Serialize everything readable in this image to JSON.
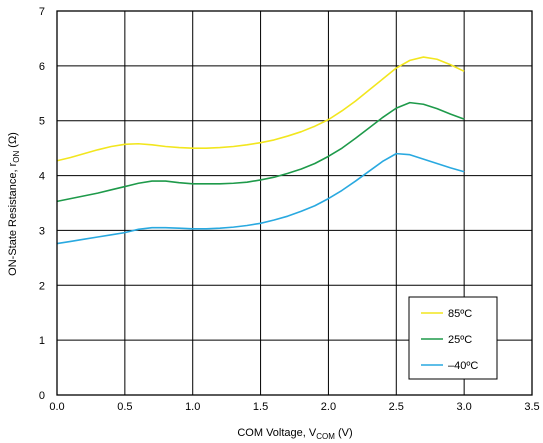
{
  "chart_data": {
    "type": "line",
    "xlabel": "COM Voltage, V",
    "xlabel_sub": "COM",
    "xlabel_unit": " (V)",
    "ylabel": "ON-State Resistance, r",
    "ylabel_sub": "ON",
    "ylabel_unit": " (Ω)",
    "xlim": [
      0,
      3.5
    ],
    "ylim": [
      0,
      7
    ],
    "x_ticks": [
      "0.0",
      "0.5",
      "1.0",
      "1.5",
      "2.0",
      "2.5",
      "3.0",
      "3.5"
    ],
    "y_ticks": [
      "0",
      "1",
      "2",
      "3",
      "4",
      "5",
      "6",
      "7"
    ],
    "grid": true,
    "legend_position": "bottom-right",
    "series": [
      {
        "name": "85ºC",
        "color": "#f2e61e",
        "points": [
          [
            0.0,
            4.27
          ],
          [
            0.1,
            4.33
          ],
          [
            0.2,
            4.4
          ],
          [
            0.3,
            4.47
          ],
          [
            0.4,
            4.53
          ],
          [
            0.5,
            4.57
          ],
          [
            0.6,
            4.58
          ],
          [
            0.7,
            4.56
          ],
          [
            0.8,
            4.53
          ],
          [
            0.9,
            4.51
          ],
          [
            1.0,
            4.5
          ],
          [
            1.1,
            4.5
          ],
          [
            1.2,
            4.51
          ],
          [
            1.3,
            4.53
          ],
          [
            1.4,
            4.56
          ],
          [
            1.5,
            4.6
          ],
          [
            1.6,
            4.65
          ],
          [
            1.7,
            4.72
          ],
          [
            1.8,
            4.8
          ],
          [
            1.9,
            4.9
          ],
          [
            2.0,
            5.02
          ],
          [
            2.1,
            5.18
          ],
          [
            2.2,
            5.36
          ],
          [
            2.3,
            5.56
          ],
          [
            2.4,
            5.76
          ],
          [
            2.5,
            5.96
          ],
          [
            2.6,
            6.1
          ],
          [
            2.7,
            6.16
          ],
          [
            2.8,
            6.12
          ],
          [
            2.9,
            6.02
          ],
          [
            3.0,
            5.9
          ]
        ]
      },
      {
        "name": "25ºC",
        "color": "#1e9a4a",
        "points": [
          [
            0.0,
            3.53
          ],
          [
            0.1,
            3.58
          ],
          [
            0.2,
            3.63
          ],
          [
            0.3,
            3.68
          ],
          [
            0.4,
            3.74
          ],
          [
            0.5,
            3.8
          ],
          [
            0.6,
            3.86
          ],
          [
            0.7,
            3.9
          ],
          [
            0.8,
            3.9
          ],
          [
            0.9,
            3.87
          ],
          [
            1.0,
            3.85
          ],
          [
            1.1,
            3.85
          ],
          [
            1.2,
            3.85
          ],
          [
            1.3,
            3.86
          ],
          [
            1.4,
            3.88
          ],
          [
            1.5,
            3.92
          ],
          [
            1.6,
            3.97
          ],
          [
            1.7,
            4.04
          ],
          [
            1.8,
            4.12
          ],
          [
            1.9,
            4.22
          ],
          [
            2.0,
            4.35
          ],
          [
            2.1,
            4.5
          ],
          [
            2.2,
            4.68
          ],
          [
            2.3,
            4.87
          ],
          [
            2.4,
            5.06
          ],
          [
            2.5,
            5.23
          ],
          [
            2.6,
            5.33
          ],
          [
            2.7,
            5.3
          ],
          [
            2.8,
            5.22
          ],
          [
            2.9,
            5.12
          ],
          [
            3.0,
            5.03
          ]
        ]
      },
      {
        "name": "–40ºC",
        "color": "#29a9e0",
        "points": [
          [
            0.0,
            2.76
          ],
          [
            0.1,
            2.8
          ],
          [
            0.2,
            2.84
          ],
          [
            0.3,
            2.88
          ],
          [
            0.4,
            2.92
          ],
          [
            0.5,
            2.96
          ],
          [
            0.6,
            3.02
          ],
          [
            0.7,
            3.05
          ],
          [
            0.8,
            3.05
          ],
          [
            0.9,
            3.04
          ],
          [
            1.0,
            3.03
          ],
          [
            1.1,
            3.03
          ],
          [
            1.2,
            3.04
          ],
          [
            1.3,
            3.06
          ],
          [
            1.4,
            3.09
          ],
          [
            1.5,
            3.13
          ],
          [
            1.6,
            3.19
          ],
          [
            1.7,
            3.26
          ],
          [
            1.8,
            3.35
          ],
          [
            1.9,
            3.45
          ],
          [
            2.0,
            3.58
          ],
          [
            2.1,
            3.73
          ],
          [
            2.2,
            3.9
          ],
          [
            2.3,
            4.08
          ],
          [
            2.4,
            4.26
          ],
          [
            2.5,
            4.4
          ],
          [
            2.6,
            4.38
          ],
          [
            2.7,
            4.3
          ],
          [
            2.8,
            4.22
          ],
          [
            2.9,
            4.14
          ],
          [
            3.0,
            4.07
          ]
        ]
      }
    ]
  }
}
